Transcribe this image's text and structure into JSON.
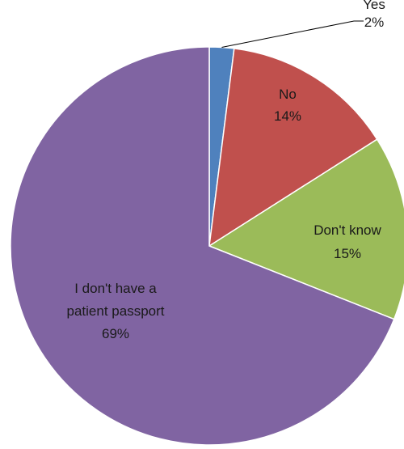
{
  "chart_data": {
    "type": "pie",
    "start_angle": "12 o'clock",
    "direction": "clockwise",
    "slices": [
      {
        "label": "Yes",
        "percent_label": "2%",
        "value": 2,
        "color": "#4f81bd"
      },
      {
        "label": "No",
        "percent_label": "14%",
        "value": 14,
        "color": "#c0504d"
      },
      {
        "label": "Don't know",
        "percent_label": "15%",
        "value": 15,
        "color": "#9bbb59"
      },
      {
        "label_lines": [
          "I don't have a",
          "patient passport"
        ],
        "percent_label": "69%",
        "value": 69,
        "color": "#8064a2"
      }
    ],
    "label_placement": [
      "outside-with-leader",
      "inside",
      "inside",
      "inside"
    ],
    "border_color": "#ffffff"
  }
}
